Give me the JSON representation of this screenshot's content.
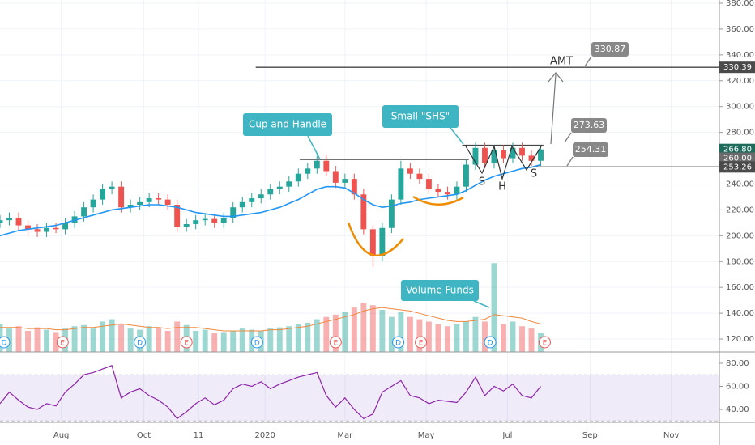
{
  "chart_data": {
    "type": "candlestick",
    "xlim": [
      0,
      540.1
    ],
    "xticks": [
      {
        "value": 46,
        "label": "Aug"
      },
      {
        "value": 108,
        "label": "Oct"
      },
      {
        "value": 149,
        "label": "11"
      },
      {
        "value": 199,
        "label": "2020"
      },
      {
        "value": 259,
        "label": "Mar"
      },
      {
        "value": 320,
        "label": "May"
      },
      {
        "value": 381,
        "label": "Jul"
      },
      {
        "value": 443,
        "label": "Sep"
      },
      {
        "value": 504,
        "label": "Nov"
      }
    ],
    "ylim": [
      110,
      382.5
    ],
    "yticks": [
      {
        "value": 380,
        "label": "380.00"
      },
      {
        "value": 360,
        "label": "360.00"
      },
      {
        "value": 340,
        "label": "340.00"
      },
      {
        "value": 320,
        "label": "320.00"
      },
      {
        "value": 300,
        "label": "300.00"
      },
      {
        "value": 280,
        "label": "280.00"
      },
      {
        "value": 240,
        "label": "240.00"
      },
      {
        "value": 220,
        "label": "220.00"
      },
      {
        "value": 200,
        "label": "200.00"
      },
      {
        "value": 180,
        "label": "180.00"
      },
      {
        "value": 160,
        "label": "160.00"
      },
      {
        "value": 140,
        "label": "140.00"
      },
      {
        "value": 120,
        "label": "120.00"
      }
    ],
    "grid": true,
    "up_color": "#26a69a",
    "down_color": "#ef5350",
    "x": [
      0,
      7,
      14,
      21,
      28,
      35,
      42,
      49,
      56,
      63,
      70,
      77,
      84,
      91,
      98,
      105,
      112,
      119,
      126,
      133,
      140,
      147,
      154,
      161,
      168,
      175,
      182,
      189,
      196,
      203,
      210,
      217,
      224,
      231,
      238,
      245,
      252,
      259,
      266,
      273,
      280,
      287,
      294,
      301,
      308,
      315,
      322,
      329,
      336,
      343,
      350,
      357,
      364,
      371,
      378,
      385,
      392,
      399,
      406
    ],
    "open": [
      210,
      212,
      214,
      208,
      205,
      203,
      206,
      205,
      210,
      215,
      222,
      228,
      236,
      238,
      222,
      224,
      226,
      229,
      228,
      224,
      207,
      209,
      212,
      213,
      210,
      214,
      222,
      226,
      229,
      232,
      236,
      238,
      242,
      248,
      252,
      258,
      250,
      241,
      244,
      232,
      205,
      184,
      206,
      228,
      252,
      248,
      244,
      236,
      234,
      232,
      238,
      255,
      268,
      256,
      266,
      260,
      268,
      262,
      258
    ],
    "high": [
      216,
      218,
      218,
      212,
      209,
      210,
      210,
      214,
      219,
      226,
      232,
      240,
      242,
      242,
      228,
      230,
      233,
      233,
      232,
      228,
      213,
      216,
      217,
      217,
      218,
      226,
      230,
      233,
      236,
      240,
      242,
      246,
      252,
      256,
      262,
      262,
      254,
      248,
      248,
      236,
      208,
      210,
      232,
      258,
      256,
      252,
      248,
      240,
      238,
      242,
      259,
      272,
      272,
      270,
      270,
      272,
      272,
      266,
      270
    ],
    "low": [
      206,
      208,
      204,
      201,
      199,
      199,
      202,
      201,
      206,
      211,
      218,
      224,
      232,
      218,
      218,
      220,
      222,
      224,
      220,
      203,
      203,
      205,
      208,
      206,
      206,
      210,
      218,
      222,
      225,
      228,
      232,
      234,
      238,
      244,
      248,
      246,
      237,
      237,
      228,
      201,
      176,
      180,
      202,
      224,
      244,
      240,
      232,
      230,
      228,
      228,
      234,
      251,
      252,
      252,
      256,
      256,
      258,
      254,
      254
    ],
    "close": [
      212,
      214,
      208,
      205,
      203,
      206,
      205,
      210,
      215,
      222,
      228,
      236,
      238,
      222,
      224,
      226,
      229,
      228,
      224,
      207,
      209,
      212,
      213,
      210,
      214,
      222,
      226,
      229,
      232,
      236,
      238,
      242,
      248,
      252,
      258,
      250,
      241,
      244,
      232,
      205,
      184,
      206,
      228,
      252,
      248,
      244,
      236,
      234,
      232,
      238,
      255,
      268,
      256,
      266,
      260,
      268,
      262,
      258,
      266.8
    ],
    "ma": {
      "color": "#2196f3",
      "values": [
        200,
        202,
        204,
        205,
        206,
        207,
        208,
        210,
        212,
        214,
        216,
        218,
        220,
        221,
        222,
        223,
        224,
        224,
        223,
        222,
        220,
        218,
        217,
        216,
        215,
        215,
        216,
        217,
        218,
        220,
        222,
        225,
        228,
        232,
        236,
        238,
        238,
        237,
        233,
        228,
        224,
        222,
        223,
        225,
        226,
        228,
        229,
        230,
        231,
        232,
        235,
        239,
        243,
        246,
        248,
        250,
        252,
        253,
        255
      ]
    },
    "volume": {
      "vlim": [
        0,
        9
      ],
      "values": [
        2.4,
        2.0,
        2.2,
        1.8,
        2.1,
        1.9,
        1.7,
        2.0,
        2.2,
        2.3,
        2.0,
        2.6,
        2.8,
        2.4,
        2.0,
        1.9,
        2.2,
        2.1,
        1.8,
        2.6,
        2.3,
        1.8,
        1.9,
        1.6,
        1.7,
        1.8,
        2.0,
        1.9,
        1.8,
        2.0,
        2.1,
        2.2,
        2.4,
        2.5,
        2.8,
        3.0,
        3.2,
        3.4,
        3.8,
        4.2,
        4.0,
        3.6,
        3.0,
        3.4,
        3.0,
        2.8,
        2.6,
        2.4,
        2.2,
        2.4,
        2.6,
        3.0,
        2.6,
        7.6,
        2.4,
        2.6,
        2.2,
        2.0,
        1.6
      ],
      "ma_color": "#f0883e",
      "ma": [
        2.1,
        2.1,
        2.1,
        2.0,
        2.0,
        2.0,
        1.9,
        1.9,
        2.0,
        2.1,
        2.1,
        2.2,
        2.3,
        2.4,
        2.3,
        2.2,
        2.1,
        2.1,
        2.0,
        2.1,
        2.1,
        2.1,
        2.0,
        1.9,
        1.8,
        1.8,
        1.8,
        1.8,
        1.8,
        1.9,
        1.9,
        2.0,
        2.1,
        2.2,
        2.4,
        2.6,
        2.8,
        3.0,
        3.2,
        3.5,
        3.7,
        3.8,
        3.7,
        3.6,
        3.5,
        3.3,
        3.1,
        2.9,
        2.7,
        2.6,
        2.6,
        2.7,
        2.8,
        3.2,
        3.1,
        3.0,
        2.9,
        2.6,
        2.4
      ]
    },
    "rsi": {
      "color": "#8e24aa",
      "ylim": [
        28.8,
        88.4
      ],
      "band": [
        30,
        70
      ],
      "yticks": [
        {
          "value": 80,
          "label": "80.00"
        },
        {
          "value": 60,
          "label": "60.00"
        },
        {
          "value": 40,
          "label": "40.00"
        }
      ],
      "values": [
        45,
        55,
        48,
        42,
        40,
        45,
        43,
        55,
        62,
        70,
        72,
        75,
        78,
        50,
        55,
        58,
        52,
        48,
        42,
        32,
        38,
        45,
        50,
        44,
        48,
        58,
        62,
        60,
        64,
        58,
        62,
        65,
        68,
        70,
        72,
        52,
        42,
        50,
        40,
        32,
        36,
        55,
        60,
        65,
        52,
        50,
        45,
        48,
        47,
        46,
        55,
        68,
        52,
        60,
        56,
        62,
        52,
        50,
        60
      ]
    },
    "levels": [
      {
        "value": 330.39,
        "x": [
          192,
          540.1
        ]
      },
      {
        "value": 259,
        "x": [
          225,
          352
        ]
      },
      {
        "value": 270,
        "x": [
          347,
          408
        ]
      },
      {
        "value": 253.26,
        "x": [
          402,
          540.1
        ]
      }
    ],
    "price_tags": [
      {
        "value": 330.39,
        "label": "330.39",
        "color": "#4a4a4a"
      },
      {
        "value": 266.8,
        "label": "266.80",
        "color": "#1e6b5c"
      },
      {
        "value": 260,
        "label": "260.00",
        "color": "#6b6b6b"
      },
      {
        "value": 253.26,
        "label": "253.26",
        "color": "#4a4a4a"
      }
    ],
    "events": [
      {
        "x": 3,
        "label": "D"
      },
      {
        "x": 105,
        "label": "D"
      },
      {
        "x": 193,
        "label": "D"
      },
      {
        "x": 299,
        "label": "D"
      },
      {
        "x": 368,
        "label": "D"
      },
      {
        "x": 47,
        "label": "E"
      },
      {
        "x": 140,
        "label": "E"
      },
      {
        "x": 252,
        "label": "E"
      },
      {
        "x": 316,
        "label": "E"
      },
      {
        "x": 409,
        "label": "E"
      }
    ],
    "annotations": [
      "Cup and Handle",
      "Small \"SHS\"",
      "Volume Funds",
      "AMT",
      "S",
      "H",
      "S",
      "330.87",
      "273.63",
      "254.31"
    ]
  }
}
